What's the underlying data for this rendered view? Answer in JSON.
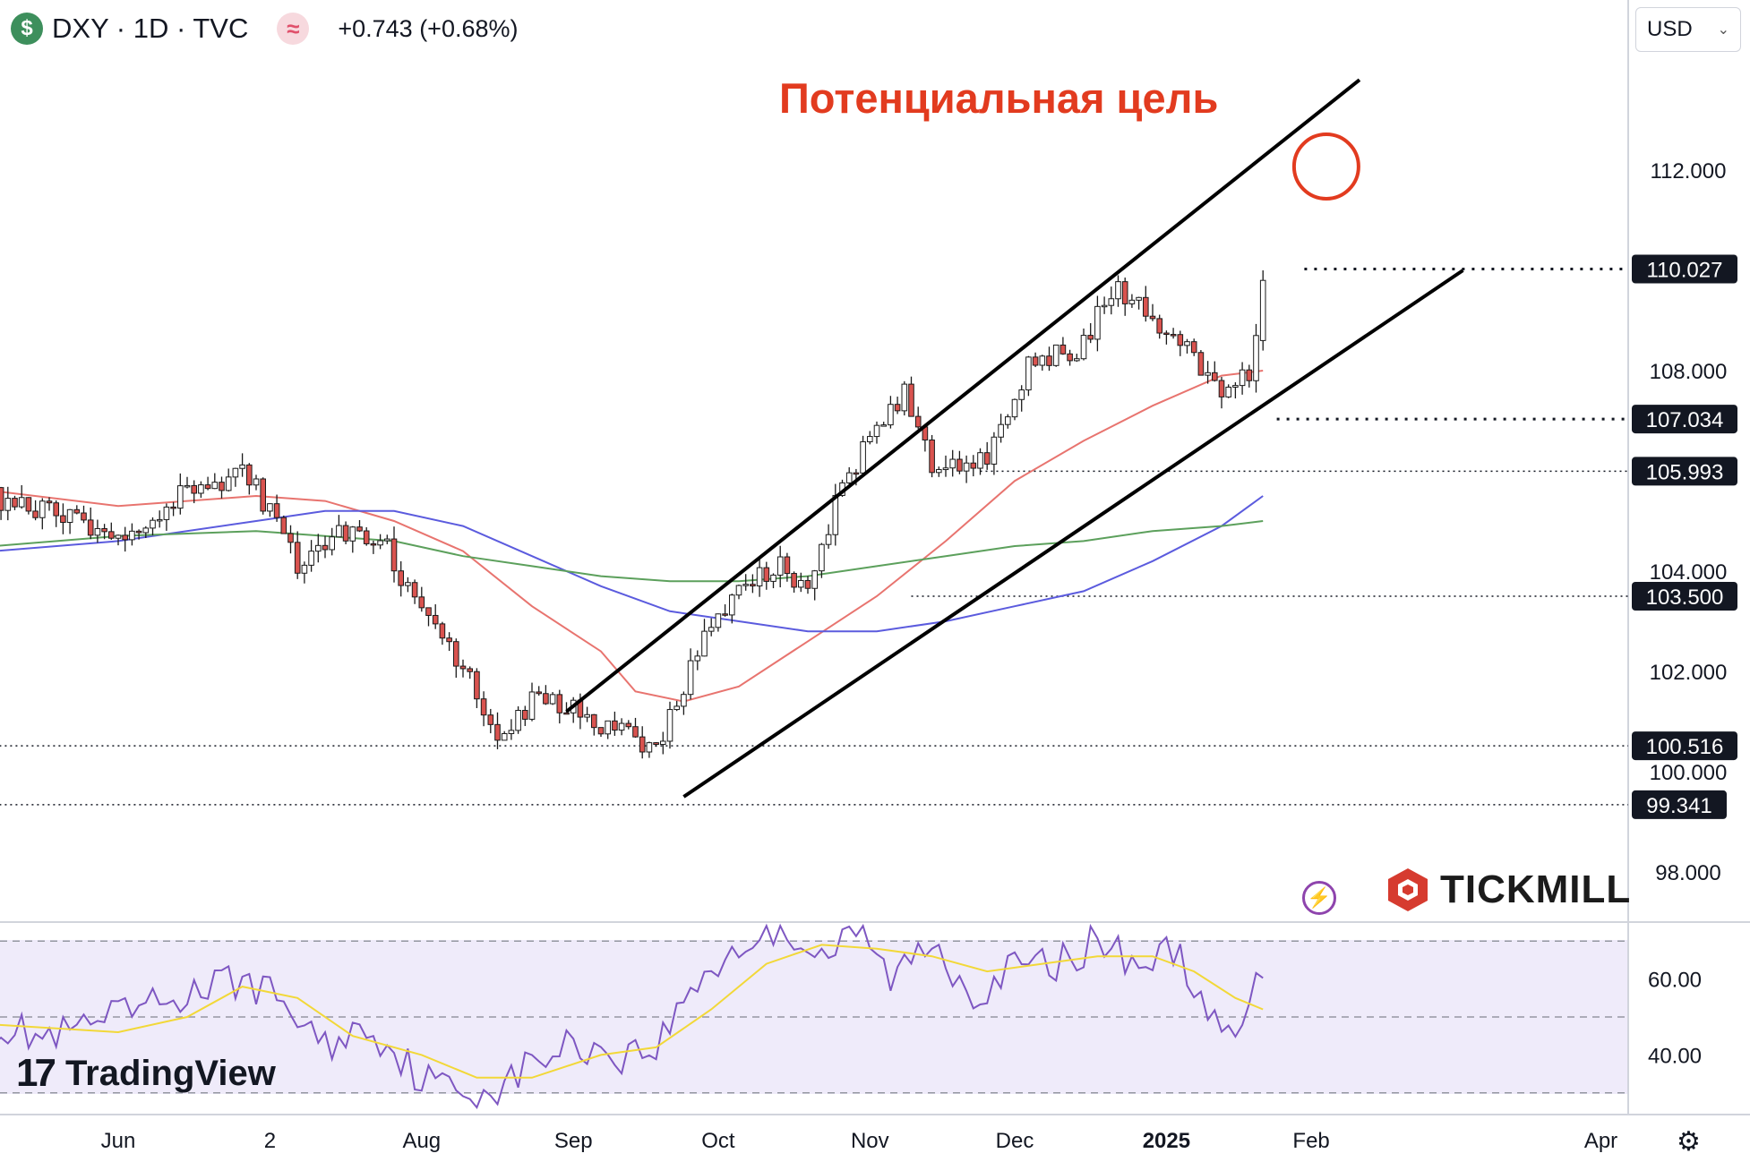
{
  "header": {
    "symbol_icon": "dollar-sign-icon",
    "symbol_icon_glyph": "$",
    "title": "DXY · 1D · TVC",
    "source_icon": "wave-icon",
    "source_icon_glyph": "≈",
    "change": "+0.743 (+0.68%)"
  },
  "currency_selector": {
    "value": "USD",
    "chevron": "⌄"
  },
  "annotation": {
    "text": "Потенциальная цель"
  },
  "branding": {
    "tradingview_mark": "17",
    "tradingview": "TradingView",
    "tickmill": "TICKMILL",
    "flash_glyph": "⚡",
    "gear_glyph": "⚙"
  },
  "chart_data": {
    "type": "candlestick",
    "title": "",
    "xlabel": "",
    "ylabel": "",
    "ylim": [
      97,
      114.5
    ],
    "y_ticks": [
      "112.000",
      "108.000",
      "104.000",
      "102.000",
      "100.000",
      "98.000"
    ],
    "price_labels": [
      "110.027",
      "107.034",
      "105.993",
      "103.500",
      "100.516",
      "99.341"
    ],
    "x_ticks": [
      {
        "label": "Jun",
        "i": 0
      },
      {
        "label": "2",
        "i": 22
      },
      {
        "label": "Aug",
        "i": 44
      },
      {
        "label": "Sep",
        "i": 66
      },
      {
        "label": "Oct",
        "i": 87
      },
      {
        "label": "Nov",
        "i": 109
      },
      {
        "label": "Dec",
        "i": 130
      },
      {
        "label": "2025",
        "i": 152
      },
      {
        "label": "Feb",
        "i": 173
      },
      {
        "label": "Apr",
        "i": 215
      }
    ],
    "horizontal_levels": [
      {
        "price": 110.027,
        "from_i": 172,
        "style": "dotted-bold"
      },
      {
        "price": 107.034,
        "from_i": 168,
        "style": "dotted-bold"
      },
      {
        "price": 105.993,
        "from_i": 125,
        "style": "dotted"
      },
      {
        "price": 103.5,
        "from_i": 115,
        "style": "dotted"
      },
      {
        "price": 100.516,
        "from_i": -18,
        "style": "dotted"
      },
      {
        "price": 99.341,
        "from_i": -18,
        "style": "dotted"
      }
    ],
    "channel": {
      "upper": [
        [
          65,
          101.2
        ],
        [
          180,
          113.8
        ]
      ],
      "lower": [
        [
          82,
          99.5
        ],
        [
          195,
          110.0
        ]
      ]
    },
    "target_circle": {
      "i": 177,
      "price": 112.0
    },
    "candle_segments": [
      {
        "i_start": -18,
        "i_end": 0,
        "from": 105.5,
        "to": 104.7
      },
      {
        "i_start": 0,
        "i_end": 10,
        "from": 104.7,
        "to": 105.6
      },
      {
        "i_start": 10,
        "i_end": 18,
        "from": 105.6,
        "to": 106.0
      },
      {
        "i_start": 18,
        "i_end": 22,
        "from": 106.0,
        "to": 105.2
      },
      {
        "i_start": 22,
        "i_end": 26,
        "from": 105.2,
        "to": 104.1
      },
      {
        "i_start": 26,
        "i_end": 32,
        "from": 104.1,
        "to": 104.8
      },
      {
        "i_start": 32,
        "i_end": 38,
        "from": 104.8,
        "to": 104.7
      },
      {
        "i_start": 38,
        "i_end": 44,
        "from": 104.7,
        "to": 103.2
      },
      {
        "i_start": 44,
        "i_end": 52,
        "from": 103.2,
        "to": 101.6
      },
      {
        "i_start": 52,
        "i_end": 56,
        "from": 101.6,
        "to": 100.6
      },
      {
        "i_start": 56,
        "i_end": 60,
        "from": 100.6,
        "to": 101.5
      },
      {
        "i_start": 60,
        "i_end": 66,
        "from": 101.5,
        "to": 101.2
      },
      {
        "i_start": 66,
        "i_end": 73,
        "from": 101.2,
        "to": 100.8
      },
      {
        "i_start": 73,
        "i_end": 78,
        "from": 100.8,
        "to": 100.5
      },
      {
        "i_start": 78,
        "i_end": 84,
        "from": 100.5,
        "to": 102.4
      },
      {
        "i_start": 84,
        "i_end": 90,
        "from": 102.4,
        "to": 103.5
      },
      {
        "i_start": 90,
        "i_end": 96,
        "from": 103.5,
        "to": 104.2
      },
      {
        "i_start": 96,
        "i_end": 100,
        "from": 104.2,
        "to": 103.6
      },
      {
        "i_start": 100,
        "i_end": 104,
        "from": 103.6,
        "to": 105.4
      },
      {
        "i_start": 104,
        "i_end": 110,
        "from": 105.4,
        "to": 106.9
      },
      {
        "i_start": 110,
        "i_end": 114,
        "from": 106.9,
        "to": 107.5
      },
      {
        "i_start": 114,
        "i_end": 118,
        "from": 107.5,
        "to": 106.2
      },
      {
        "i_start": 118,
        "i_end": 124,
        "from": 106.2,
        "to": 105.9
      },
      {
        "i_start": 124,
        "i_end": 128,
        "from": 105.9,
        "to": 106.8
      },
      {
        "i_start": 128,
        "i_end": 132,
        "from": 106.8,
        "to": 108.2
      },
      {
        "i_start": 132,
        "i_end": 140,
        "from": 108.2,
        "to": 108.5
      },
      {
        "i_start": 140,
        "i_end": 144,
        "from": 108.5,
        "to": 109.6
      },
      {
        "i_start": 144,
        "i_end": 148,
        "from": 109.6,
        "to": 109.4
      },
      {
        "i_start": 148,
        "i_end": 156,
        "from": 109.4,
        "to": 108.2
      },
      {
        "i_start": 156,
        "i_end": 160,
        "from": 108.2,
        "to": 107.5
      },
      {
        "i_start": 160,
        "i_end": 164,
        "from": 107.5,
        "to": 107.9
      },
      {
        "i_start": 164,
        "i_end": 166,
        "from": 107.9,
        "to": 109.2
      }
    ],
    "moving_averages": [
      {
        "color": "#e8746f",
        "points": [
          [
            -18,
            105.6
          ],
          [
            0,
            105.3
          ],
          [
            20,
            105.5
          ],
          [
            30,
            105.4
          ],
          [
            40,
            105.0
          ],
          [
            50,
            104.4
          ],
          [
            60,
            103.3
          ],
          [
            70,
            102.4
          ],
          [
            75,
            101.6
          ],
          [
            82,
            101.4
          ],
          [
            90,
            101.7
          ],
          [
            100,
            102.6
          ],
          [
            110,
            103.5
          ],
          [
            120,
            104.6
          ],
          [
            130,
            105.8
          ],
          [
            140,
            106.6
          ],
          [
            150,
            107.3
          ],
          [
            160,
            107.9
          ],
          [
            166,
            108.0
          ]
        ]
      },
      {
        "color": "#5b5bde",
        "points": [
          [
            -18,
            104.4
          ],
          [
            0,
            104.6
          ],
          [
            20,
            105.0
          ],
          [
            30,
            105.2
          ],
          [
            40,
            105.2
          ],
          [
            50,
            104.9
          ],
          [
            60,
            104.3
          ],
          [
            70,
            103.7
          ],
          [
            80,
            103.2
          ],
          [
            90,
            103.0
          ],
          [
            100,
            102.8
          ],
          [
            110,
            102.8
          ],
          [
            120,
            103.0
          ],
          [
            130,
            103.3
          ],
          [
            140,
            103.6
          ],
          [
            150,
            104.2
          ],
          [
            160,
            104.9
          ],
          [
            166,
            105.5
          ]
        ]
      },
      {
        "color": "#5ca05c",
        "points": [
          [
            -18,
            104.5
          ],
          [
            0,
            104.7
          ],
          [
            20,
            104.8
          ],
          [
            40,
            104.6
          ],
          [
            50,
            104.3
          ],
          [
            60,
            104.1
          ],
          [
            70,
            103.9
          ],
          [
            80,
            103.8
          ],
          [
            90,
            103.8
          ],
          [
            100,
            103.9
          ],
          [
            110,
            104.1
          ],
          [
            120,
            104.3
          ],
          [
            130,
            104.5
          ],
          [
            140,
            104.6
          ],
          [
            150,
            104.8
          ],
          [
            160,
            104.9
          ],
          [
            166,
            105.0
          ]
        ]
      }
    ],
    "rsi": {
      "y_ticks": [
        "60.00",
        "40.00"
      ],
      "ylim": [
        25,
        75
      ],
      "levels": [
        70,
        50,
        30
      ],
      "line_color": "#7e57c2",
      "ma_color": "#f2d838",
      "points": [
        [
          -18,
          48
        ],
        [
          -10,
          44
        ],
        [
          0,
          50
        ],
        [
          10,
          56
        ],
        [
          18,
          60
        ],
        [
          24,
          54
        ],
        [
          30,
          42
        ],
        [
          36,
          48
        ],
        [
          44,
          34
        ],
        [
          50,
          30
        ],
        [
          56,
          32
        ],
        [
          60,
          38
        ],
        [
          66,
          43
        ],
        [
          73,
          40
        ],
        [
          78,
          42
        ],
        [
          84,
          60
        ],
        [
          90,
          68
        ],
        [
          96,
          74
        ],
        [
          102,
          66
        ],
        [
          108,
          72
        ],
        [
          112,
          60
        ],
        [
          118,
          70
        ],
        [
          124,
          56
        ],
        [
          130,
          63
        ],
        [
          136,
          64
        ],
        [
          142,
          70
        ],
        [
          148,
          64
        ],
        [
          154,
          68
        ],
        [
          158,
          48
        ],
        [
          162,
          44
        ],
        [
          166,
          62
        ]
      ],
      "ma_points": [
        [
          -18,
          48
        ],
        [
          0,
          46
        ],
        [
          10,
          50
        ],
        [
          18,
          58
        ],
        [
          26,
          55
        ],
        [
          34,
          45
        ],
        [
          44,
          40
        ],
        [
          52,
          34
        ],
        [
          60,
          34
        ],
        [
          70,
          40
        ],
        [
          78,
          42
        ],
        [
          86,
          52
        ],
        [
          94,
          64
        ],
        [
          102,
          69
        ],
        [
          110,
          68
        ],
        [
          118,
          66
        ],
        [
          126,
          62
        ],
        [
          134,
          64
        ],
        [
          142,
          66
        ],
        [
          150,
          66
        ],
        [
          156,
          62
        ],
        [
          162,
          55
        ],
        [
          166,
          52
        ]
      ]
    }
  }
}
